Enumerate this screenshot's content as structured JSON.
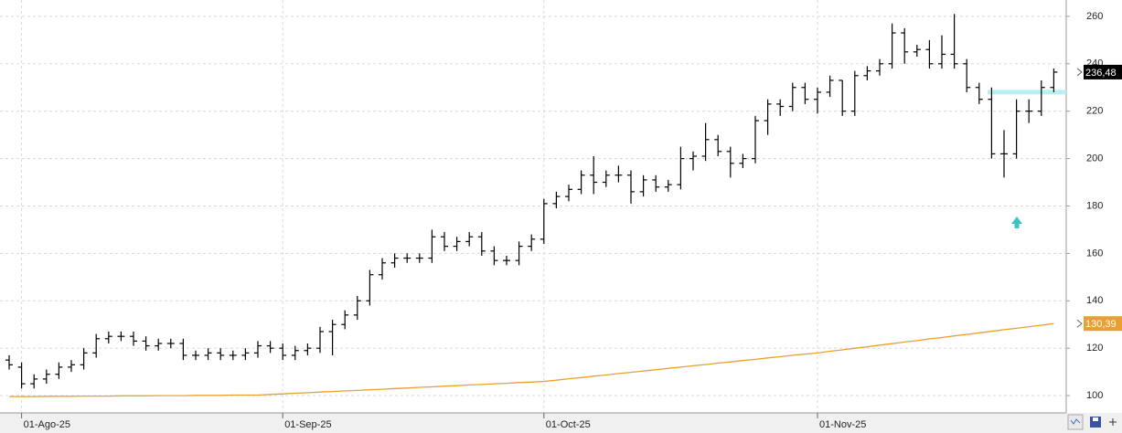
{
  "chart_data": {
    "type": "ohlc",
    "categories": [
      null,
      "01-Ago-25",
      null,
      null,
      null,
      null,
      null,
      null,
      null,
      null,
      null,
      null,
      null,
      null,
      null,
      null,
      null,
      null,
      null,
      null,
      null,
      null,
      "01-Sep-25",
      null,
      null,
      null,
      null,
      null,
      null,
      null,
      null,
      null,
      null,
      null,
      null,
      null,
      null,
      null,
      null,
      null,
      null,
      null,
      null,
      "01-Oct-25",
      null,
      null,
      null,
      null,
      null,
      null,
      null,
      null,
      null,
      null,
      null,
      null,
      null,
      null,
      null,
      null,
      null,
      null,
      null,
      null,
      null,
      "01-Nov-25",
      null,
      null,
      null,
      null,
      null,
      null,
      null,
      null,
      null,
      null,
      null,
      null,
      null,
      null,
      null,
      null,
      null,
      null,
      null
    ],
    "open": [
      115,
      112,
      105,
      107,
      109,
      112,
      113,
      118,
      124,
      125,
      125,
      123,
      121,
      122,
      122,
      117,
      117,
      118,
      117,
      117,
      118,
      121,
      120,
      117,
      119,
      120,
      127,
      130,
      134,
      140,
      151,
      156,
      158,
      158,
      158,
      167,
      163,
      165,
      167,
      161,
      157,
      157,
      163,
      166,
      181,
      184,
      187,
      193,
      190,
      193,
      193,
      186,
      191,
      188,
      189,
      200,
      201,
      208,
      203,
      198,
      200,
      216,
      223,
      222,
      230,
      225,
      228,
      233,
      220,
      235,
      237,
      240,
      253,
      245,
      246,
      240,
      244,
      240,
      230,
      225,
      202,
      202,
      220,
      220,
      230
    ],
    "high": [
      117,
      114,
      109,
      111,
      114,
      115,
      120,
      126,
      127,
      127,
      127,
      125,
      124,
      124,
      124,
      119,
      120,
      120,
      119,
      120,
      123,
      123,
      122,
      121,
      122,
      129,
      132,
      136,
      142,
      153,
      158,
      160,
      160,
      160,
      170,
      169,
      167,
      169,
      169,
      163,
      159,
      165,
      168,
      183,
      186,
      189,
      195,
      201,
      195,
      197,
      195,
      193,
      193,
      191,
      205,
      203,
      215,
      210,
      205,
      202,
      218,
      225,
      225,
      232,
      232,
      230,
      235,
      233,
      237,
      239,
      242,
      257,
      255,
      248,
      250,
      252,
      261,
      242,
      232,
      230,
      212,
      225,
      225,
      233,
      238
    ],
    "low": [
      111,
      103,
      103,
      105,
      107,
      110,
      111,
      116,
      122,
      123,
      121,
      119,
      119,
      120,
      115,
      115,
      115,
      115,
      115,
      115,
      116,
      118,
      115,
      115,
      117,
      118,
      117,
      128,
      132,
      138,
      149,
      154,
      156,
      156,
      156,
      161,
      161,
      163,
      159,
      155,
      155,
      155,
      161,
      164,
      179,
      182,
      185,
      185,
      188,
      190,
      181,
      184,
      186,
      186,
      187,
      195,
      199,
      201,
      192,
      196,
      198,
      210,
      218,
      220,
      223,
      219,
      226,
      218,
      218,
      233,
      235,
      238,
      240,
      243,
      238,
      238,
      238,
      228,
      223,
      200,
      192,
      200,
      215,
      218,
      228
    ],
    "close": [
      113,
      105,
      107,
      109,
      112,
      113,
      118,
      124,
      125,
      125,
      123,
      121,
      122,
      122,
      117,
      117,
      118,
      117,
      117,
      118,
      121,
      120,
      117,
      119,
      120,
      127,
      130,
      134,
      140,
      151,
      156,
      158,
      158,
      158,
      167,
      163,
      165,
      167,
      161,
      157,
      157,
      163,
      166,
      181,
      184,
      187,
      193,
      190,
      193,
      193,
      186,
      191,
      188,
      189,
      200,
      201,
      208,
      203,
      198,
      200,
      216,
      223,
      222,
      230,
      225,
      228,
      233,
      220,
      235,
      237,
      240,
      253,
      245,
      246,
      240,
      244,
      240,
      230,
      225,
      202,
      202,
      220,
      220,
      230,
      236.48
    ],
    "close_last_label": "236,48",
    "color": "#000000",
    "ma_values": [
      99.6,
      99.6,
      99.6,
      99.7,
      99.7,
      99.7,
      99.8,
      99.8,
      99.8,
      99.9,
      99.9,
      99.9,
      100,
      100,
      100,
      100.1,
      100.1,
      100.1,
      100.2,
      100.2,
      100.2,
      100.5,
      100.7,
      101,
      101.2,
      101.5,
      101.7,
      102,
      102.2,
      102.5,
      102.7,
      103,
      103.2,
      103.5,
      103.7,
      104,
      104.2,
      104.5,
      104.7,
      105,
      105.2,
      105.5,
      105.7,
      106,
      106.5,
      107.1,
      107.6,
      108.2,
      108.7,
      109.3,
      109.8,
      110.4,
      110.9,
      111.5,
      112,
      112.6,
      113.1,
      113.7,
      114.2,
      114.8,
      115.3,
      115.9,
      116.4,
      117,
      117.5,
      118,
      118.7,
      119.3,
      120,
      120.6,
      121.3,
      121.9,
      122.6,
      123.2,
      123.9,
      124.5,
      125.2,
      125.8,
      126.5,
      127.1,
      127.8,
      128.4,
      129.1,
      129.7,
      130.39
    ],
    "ma_last_label": "130,39",
    "ma_color": "#e8a030",
    "level": 228,
    "level_color": "#b8f0f0",
    "ylim": [
      92.7,
      266.9
    ],
    "yticks": [
      100,
      120,
      140,
      160,
      180,
      200,
      220,
      240,
      260
    ],
    "grid": true
  }
}
